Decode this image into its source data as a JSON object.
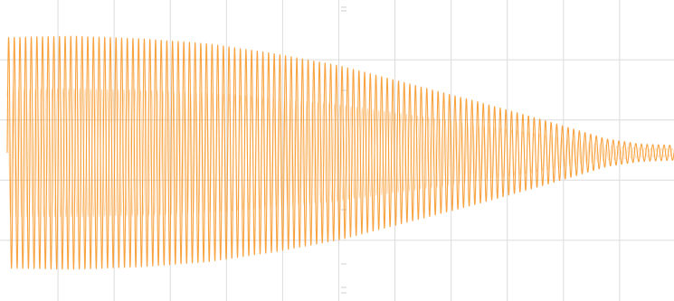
{
  "chart_data": {
    "type": "line",
    "title": "",
    "xlabel": "",
    "ylabel": "",
    "xlim": [
      0,
      1
    ],
    "ylim": [
      -1.1,
      1.1
    ],
    "grid": true,
    "grid_divisions": {
      "x": 12,
      "y": 5
    },
    "series": [
      {
        "color": "#f7931e",
        "cycles": 118,
        "envelope": {
          "x": [
            0.0,
            0.1,
            0.2,
            0.3,
            0.4,
            0.5,
            0.6,
            0.7,
            0.8,
            0.85,
            0.9,
            0.95,
            1.0
          ],
          "amplitude": [
            0.93,
            0.94,
            0.92,
            0.88,
            0.8,
            0.7,
            0.56,
            0.42,
            0.27,
            0.19,
            0.11,
            0.07,
            0.06
          ]
        }
      }
    ]
  },
  "colors": {
    "background": "#ffffff",
    "grid": "#dcdcdc",
    "axis_tick": "#cfcfcf",
    "trace": "#f7931e"
  }
}
